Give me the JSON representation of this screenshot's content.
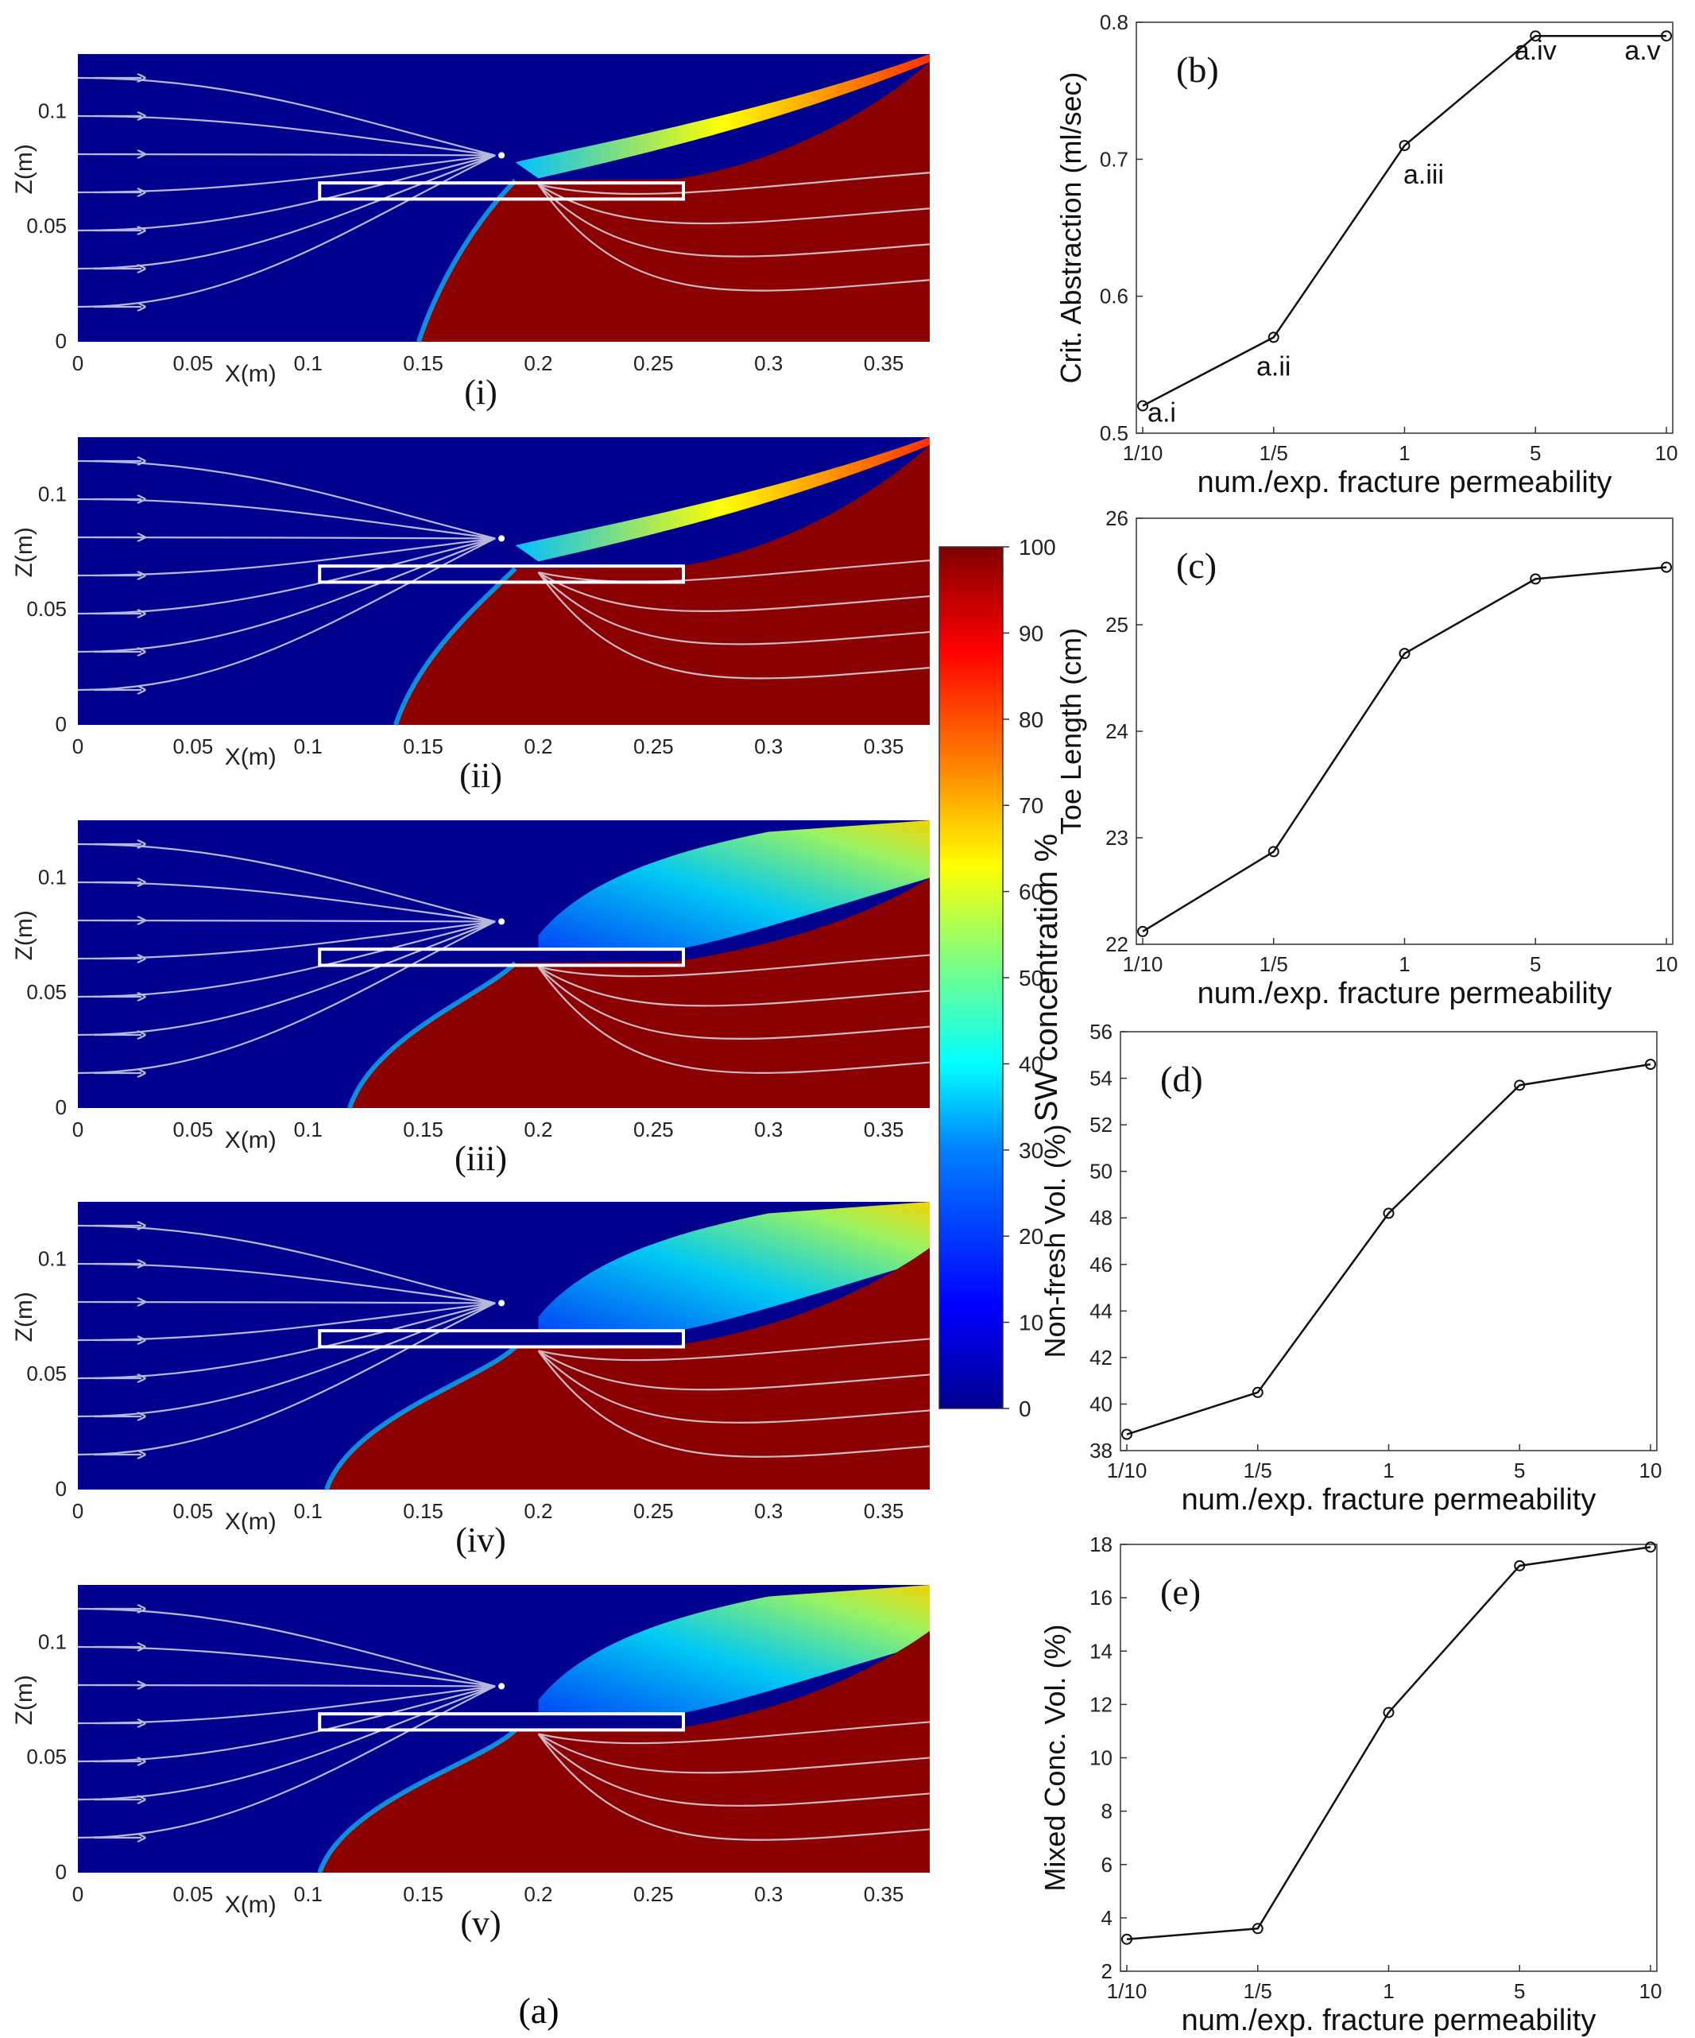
{
  "figure_label": "(a)",
  "colorbar": {
    "title": "SW concentration %",
    "ticks": [
      "0",
      "10",
      "20",
      "30",
      "40",
      "50",
      "60",
      "70",
      "80",
      "90",
      "100"
    ],
    "colors": [
      "#00008f",
      "#0000ff",
      "#0080ff",
      "#00ffff",
      "#80ff80",
      "#ffff00",
      "#ff8000",
      "#ff0000",
      "#800000"
    ]
  },
  "colors": {
    "fresh": "#00008f",
    "saline": "#8b0000",
    "streamline": "#d9d9e8",
    "well": "#ffffff"
  },
  "chart_data": [
    {
      "type": "heatmap",
      "panel": "(i)",
      "xlabel": "X(m)",
      "ylabel": "Z(m)",
      "xlim": [
        0,
        0.37
      ],
      "ylim": [
        0,
        0.125
      ],
      "xticks": [
        "0",
        "0.05",
        "0.1",
        "0.15",
        "0.2",
        "0.25",
        "0.3",
        "0.35"
      ],
      "yticks": [
        "0",
        "0.05",
        "0.1"
      ],
      "fracture": {
        "x": [
          0.105,
          0.263
        ],
        "z": [
          0.062,
          0.069
        ]
      },
      "well": {
        "x": 0.184,
        "z": 0.081
      },
      "interface": {
        "toe_x": 0.148,
        "well_z": 0.07,
        "top_x": 0.37,
        "top_z": 0.125
      },
      "mixing": "narrow"
    },
    {
      "type": "heatmap",
      "panel": "(ii)",
      "xlabel": "X(m)",
      "ylabel": "Z(m)",
      "xlim": [
        0,
        0.37
      ],
      "ylim": [
        0,
        0.125
      ],
      "xticks": [
        "0",
        "0.05",
        "0.1",
        "0.15",
        "0.2",
        "0.25",
        "0.3",
        "0.35"
      ],
      "yticks": [
        "0",
        "0.05",
        "0.1"
      ],
      "fracture": {
        "x": [
          0.105,
          0.263
        ],
        "z": [
          0.062,
          0.069
        ]
      },
      "well": {
        "x": 0.184,
        "z": 0.081
      },
      "interface": {
        "toe_x": 0.138,
        "well_z": 0.068,
        "top_x": 0.37,
        "top_z": 0.125
      },
      "mixing": "narrow"
    },
    {
      "type": "heatmap",
      "panel": "(iii)",
      "xlabel": "X(m)",
      "ylabel": "Z(m)",
      "xlim": [
        0,
        0.37
      ],
      "ylim": [
        0,
        0.125
      ],
      "xticks": [
        "0",
        "0.05",
        "0.1",
        "0.15",
        "0.2",
        "0.25",
        "0.3",
        "0.35"
      ],
      "yticks": [
        "0",
        "0.05",
        "0.1"
      ],
      "fracture": {
        "x": [
          0.105,
          0.263
        ],
        "z": [
          0.062,
          0.069
        ]
      },
      "well": {
        "x": 0.184,
        "z": 0.081
      },
      "interface": {
        "toe_x": 0.118,
        "well_z": 0.063,
        "top_x": 0.37,
        "top_z": 0.1
      },
      "mixing": "wide"
    },
    {
      "type": "heatmap",
      "panel": "(iv)",
      "xlabel": "X(m)",
      "ylabel": "Z(m)",
      "xlim": [
        0,
        0.37
      ],
      "ylim": [
        0,
        0.125
      ],
      "xticks": [
        "0",
        "0.05",
        "0.1",
        "0.15",
        "0.2",
        "0.25",
        "0.3",
        "0.35"
      ],
      "yticks": [
        "0",
        "0.05",
        "0.1"
      ],
      "fracture": {
        "x": [
          0.105,
          0.263
        ],
        "z": [
          0.062,
          0.069
        ]
      },
      "well": {
        "x": 0.184,
        "z": 0.081
      },
      "interface": {
        "toe_x": 0.108,
        "well_z": 0.062,
        "top_x": 0.37,
        "top_z": 0.105
      },
      "mixing": "wide"
    },
    {
      "type": "heatmap",
      "panel": "(v)",
      "xlabel": "X(m)",
      "ylabel": "Z(m)",
      "xlim": [
        0,
        0.37
      ],
      "ylim": [
        0,
        0.125
      ],
      "xticks": [
        "0",
        "0.05",
        "0.1",
        "0.15",
        "0.2",
        "0.25",
        "0.3",
        "0.35"
      ],
      "yticks": [
        "0",
        "0.05",
        "0.1"
      ],
      "fracture": {
        "x": [
          0.105,
          0.263
        ],
        "z": [
          0.062,
          0.069
        ]
      },
      "well": {
        "x": 0.184,
        "z": 0.081
      },
      "interface": {
        "toe_x": 0.105,
        "well_z": 0.062,
        "top_x": 0.37,
        "top_z": 0.105
      },
      "mixing": "wide"
    },
    {
      "type": "line",
      "label": "(b)",
      "xlabel": "num./exp. fracture permeability",
      "ylabel": "Crit. Abstraction (ml/sec)",
      "categories": [
        "1/10",
        "1/5",
        "1",
        "5",
        "10"
      ],
      "values": [
        0.52,
        0.57,
        0.71,
        0.79,
        0.79
      ],
      "ylim": [
        0.5,
        0.8
      ],
      "yticks": [
        "0.5",
        "0.6",
        "0.7",
        "0.8"
      ],
      "point_labels": [
        "a.i",
        "a.ii",
        "a.iii",
        "a.iv",
        "a.v"
      ]
    },
    {
      "type": "line",
      "label": "(c)",
      "xlabel": "num./exp. fracture permeability",
      "ylabel": "Toe Length (cm)",
      "categories": [
        "1/10",
        "1/5",
        "1",
        "5",
        "10"
      ],
      "values": [
        22.12,
        22.87,
        24.73,
        25.43,
        25.54
      ],
      "ylim": [
        22,
        26
      ],
      "yticks": [
        "22",
        "23",
        "24",
        "25",
        "26"
      ]
    },
    {
      "type": "line",
      "label": "(d)",
      "xlabel": "num./exp. fracture permeability",
      "ylabel": "Non-fresh Vol. (%)",
      "categories": [
        "1/10",
        "1/5",
        "1",
        "5",
        "10"
      ],
      "values": [
        38.7,
        40.5,
        48.2,
        53.7,
        54.6
      ],
      "ylim": [
        38,
        56
      ],
      "yticks": [
        "38",
        "40",
        "42",
        "44",
        "46",
        "48",
        "50",
        "52",
        "54",
        "56"
      ]
    },
    {
      "type": "line",
      "label": "(e)",
      "xlabel": "num./exp. fracture permeability",
      "ylabel": "Mixed Conc. Vol. (%)",
      "categories": [
        "1/10",
        "1/5",
        "1",
        "5",
        "10"
      ],
      "values": [
        3.2,
        3.6,
        11.7,
        17.2,
        17.9
      ],
      "ylim": [
        2,
        18
      ],
      "yticks": [
        "2",
        "4",
        "6",
        "8",
        "10",
        "12",
        "14",
        "16",
        "18"
      ]
    }
  ]
}
